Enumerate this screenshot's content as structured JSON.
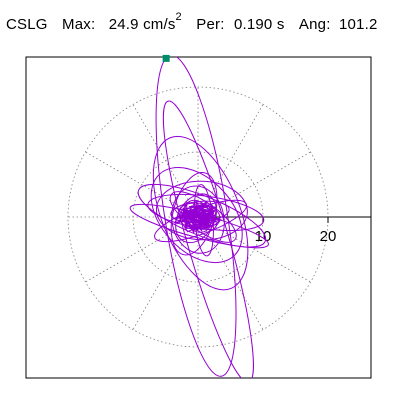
{
  "header": {
    "station": "CSLG",
    "max_label": "Max:",
    "max_value": "24.9 cm/s",
    "max_unit_exp": "2",
    "per_label": "Per:",
    "per_value": "0.190 s",
    "ang_label": "Ang:",
    "ang_value": "101.2"
  },
  "colors": {
    "trace": "#9400d3",
    "marker": "#008b6b",
    "grid": "#808080",
    "frame": "#000000"
  },
  "chart_data": {
    "type": "scatter",
    "subtype": "polar-particle-motion",
    "title": "",
    "radial_ticks": [
      10,
      20
    ],
    "radial_tick_labels": [
      "10",
      "20"
    ],
    "grid_rings": [
      10,
      20
    ],
    "grid_spokes_deg": [
      0,
      30,
      60,
      90,
      120,
      150,
      180,
      210,
      240,
      270,
      300,
      330
    ],
    "max_radius": 24.9,
    "max_angle_deg": 101.2,
    "peak_marker": {
      "x": -4.9,
      "y": 24.4
    },
    "series": [
      {
        "values": {
          "ellipses": [
            {
              "rx": 25.0,
              "ry": 4.8,
              "rot_deg": 99,
              "cx": -0.3,
              "cy": 0.2
            },
            {
              "rx": 22.5,
              "ry": 3.2,
              "rot_deg": 106,
              "cx": 1.6,
              "cy": -3.8
            },
            {
              "rx": 12.5,
              "ry": 6.0,
              "rot_deg": 112,
              "cx": 0.4,
              "cy": 0.6
            },
            {
              "rx": 10.5,
              "ry": 3.0,
              "rot_deg": 158,
              "cx": 0.6,
              "cy": 0.2
            },
            {
              "rx": 9.0,
              "ry": 2.5,
              "rot_deg": 172,
              "cx": 1.2,
              "cy": 0.7
            },
            {
              "rx": 8.5,
              "ry": 5.5,
              "rot_deg": 132,
              "cx": -0.2,
              "cy": 0.3
            },
            {
              "rx": 7.5,
              "ry": 2.0,
              "rot_deg": 20,
              "cx": 0.4,
              "cy": -0.6
            },
            {
              "rx": 6.5,
              "ry": 3.2,
              "rot_deg": 75,
              "cx": -0.6,
              "cy": 0.5
            },
            {
              "rx": 6.0,
              "ry": 2.2,
              "rot_deg": 145,
              "cx": 0.8,
              "cy": 0.0
            },
            {
              "rx": 5.2,
              "ry": 4.0,
              "rot_deg": 100,
              "cx": 0.0,
              "cy": -0.4
            },
            {
              "rx": 4.5,
              "ry": 1.6,
              "rot_deg": 5,
              "cx": 0.3,
              "cy": 0.8
            },
            {
              "rx": 4.0,
              "ry": 2.8,
              "rot_deg": 60,
              "cx": -0.3,
              "cy": -0.2
            },
            {
              "rx": 3.2,
              "ry": 1.8,
              "rot_deg": 170,
              "cx": 0.2,
              "cy": 0.3
            },
            {
              "rx": 2.6,
              "ry": 2.0,
              "rot_deg": 120,
              "cx": -0.1,
              "cy": 0.1
            },
            {
              "rx": 2.0,
              "ry": 1.2,
              "rot_deg": 30,
              "cx": 0.4,
              "cy": -0.3
            },
            {
              "rx": 11.0,
              "ry": 1.8,
              "rot_deg": 165,
              "cx": 0.2,
              "cy": -1.4
            },
            {
              "rx": 7.0,
              "ry": 4.5,
              "rot_deg": 178,
              "cx": 0.6,
              "cy": 1.0
            },
            {
              "rx": 5.5,
              "ry": 1.4,
              "rot_deg": 95,
              "cx": 0.9,
              "cy": -0.5
            }
          ],
          "cluster_core": {
            "radius_data": 3.0,
            "turns": 120
          }
        }
      }
    ]
  }
}
